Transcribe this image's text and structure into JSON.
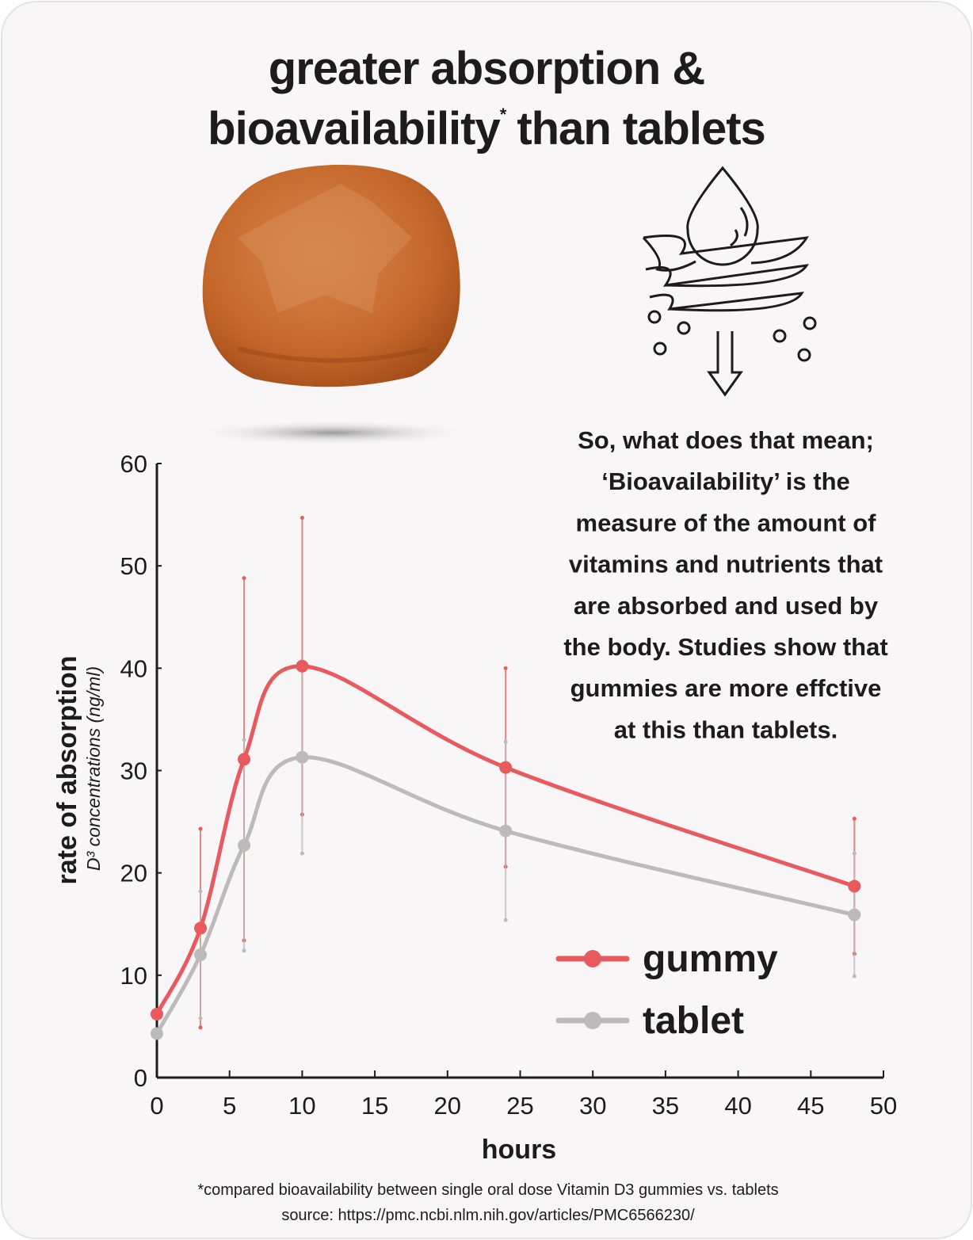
{
  "chart_data": {
    "type": "line",
    "title": {
      "first_line": "greater absorption &",
      "second_line_start": "bioavailability",
      "second_line_mark": "*",
      "second_line_end": "than tablets"
    },
    "annotation_lines": [
      "So, what does that mean;",
      "‘Bioavailability’ is the",
      "measure of the amount of",
      "vitamins and nutrients that",
      "are absorbed and used by",
      "the body. Studies show that",
      "gummies are more effctive",
      "at this than tablets."
    ],
    "x_label": "hours",
    "y_label": "rate of absorption",
    "y_sublabel": "D³ concentrations (ng/ml)",
    "x": [
      0,
      3,
      6,
      10,
      24,
      48
    ],
    "series": [
      {
        "name": "gummy",
        "color": "#e85a5e",
        "values": [
          6.2,
          14.6,
          31.1,
          40.2,
          30.3,
          18.7
        ],
        "errors": [
          null,
          9.7,
          17.7,
          14.5,
          9.7,
          6.6
        ]
      },
      {
        "name": "tablet",
        "color": "#bcbabb",
        "values": [
          4.3,
          12.0,
          22.7,
          31.3,
          24.1,
          15.9
        ],
        "errors": [
          null,
          6.2,
          10.3,
          9.4,
          8.7,
          6.0
        ]
      }
    ],
    "xlim": [
      0,
      50
    ],
    "xticks": [
      0,
      5,
      10,
      15,
      20,
      25,
      30,
      35,
      40,
      45,
      50
    ],
    "ylim": [
      0,
      60
    ],
    "yticks": [
      0,
      10,
      20,
      30,
      40,
      50,
      60
    ],
    "legend": "lower right",
    "footnotes": [
      "*compared bioavailability between single oral dose Vitamin D3 gummies vs. tablets",
      "source: https://pmc.ncbi.nlm.nih.gov/articles/PMC6566230/"
    ]
  }
}
